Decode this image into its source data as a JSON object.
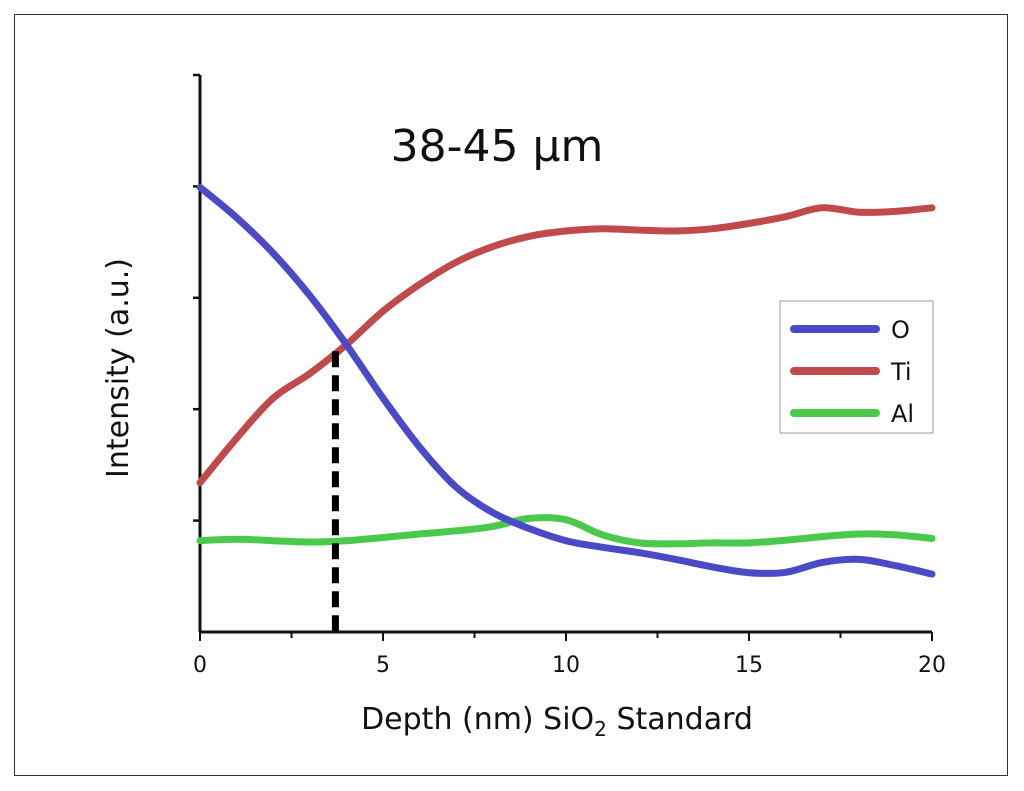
{
  "chart_data": {
    "type": "line",
    "title": "38-45 µm",
    "xlabel_prefix": "Depth (nm) SiO",
    "xlabel_sub": "2",
    "xlabel_suffix": " Standard",
    "ylabel": "Intensity (a.u.)",
    "xlim": [
      0,
      20
    ],
    "ylim": [
      0,
      1
    ],
    "xticks": [
      "0",
      "5",
      "10",
      "15",
      "20"
    ],
    "xtick_values": [
      0,
      5,
      10,
      15,
      20
    ],
    "ytick_values": [
      0.25,
      0.5,
      0.75,
      1.0
    ],
    "grid": false,
    "legend_position": "right",
    "marker_line": {
      "x": 3.7,
      "y": 0.63,
      "style": "dashed",
      "color": "#000000"
    },
    "series": [
      {
        "name": "O",
        "color": "#4a4ac8",
        "x": [
          0,
          1,
          2,
          3,
          4,
          5,
          6,
          7,
          8,
          9,
          10,
          11,
          12,
          13,
          14,
          15,
          16,
          17,
          18,
          19,
          20
        ],
        "values": [
          0.998,
          0.93,
          0.85,
          0.755,
          0.645,
          0.525,
          0.415,
          0.325,
          0.268,
          0.232,
          0.205,
          0.19,
          0.178,
          0.163,
          0.146,
          0.133,
          0.134,
          0.156,
          0.163,
          0.149,
          0.13
        ]
      },
      {
        "name": "Ti",
        "color": "#c04a4a",
        "x": [
          0,
          1,
          2,
          3,
          4,
          5,
          6,
          7,
          8,
          9,
          10,
          11,
          12,
          13,
          14,
          15,
          16,
          17,
          18,
          19,
          20
        ],
        "values": [
          0.335,
          0.435,
          0.525,
          0.58,
          0.645,
          0.72,
          0.78,
          0.83,
          0.865,
          0.888,
          0.9,
          0.905,
          0.902,
          0.9,
          0.905,
          0.917,
          0.932,
          0.952,
          0.942,
          0.944,
          0.952
        ]
      },
      {
        "name": "Al",
        "color": "#4bc94b",
        "x": [
          0,
          1,
          2,
          3,
          4,
          5,
          6,
          7,
          8,
          9,
          10,
          11,
          12,
          13,
          14,
          15,
          16,
          17,
          18,
          19,
          20
        ],
        "values": [
          0.205,
          0.208,
          0.205,
          0.202,
          0.205,
          0.212,
          0.22,
          0.227,
          0.237,
          0.255,
          0.252,
          0.218,
          0.2,
          0.198,
          0.2,
          0.2,
          0.206,
          0.214,
          0.22,
          0.218,
          0.21
        ]
      }
    ]
  }
}
